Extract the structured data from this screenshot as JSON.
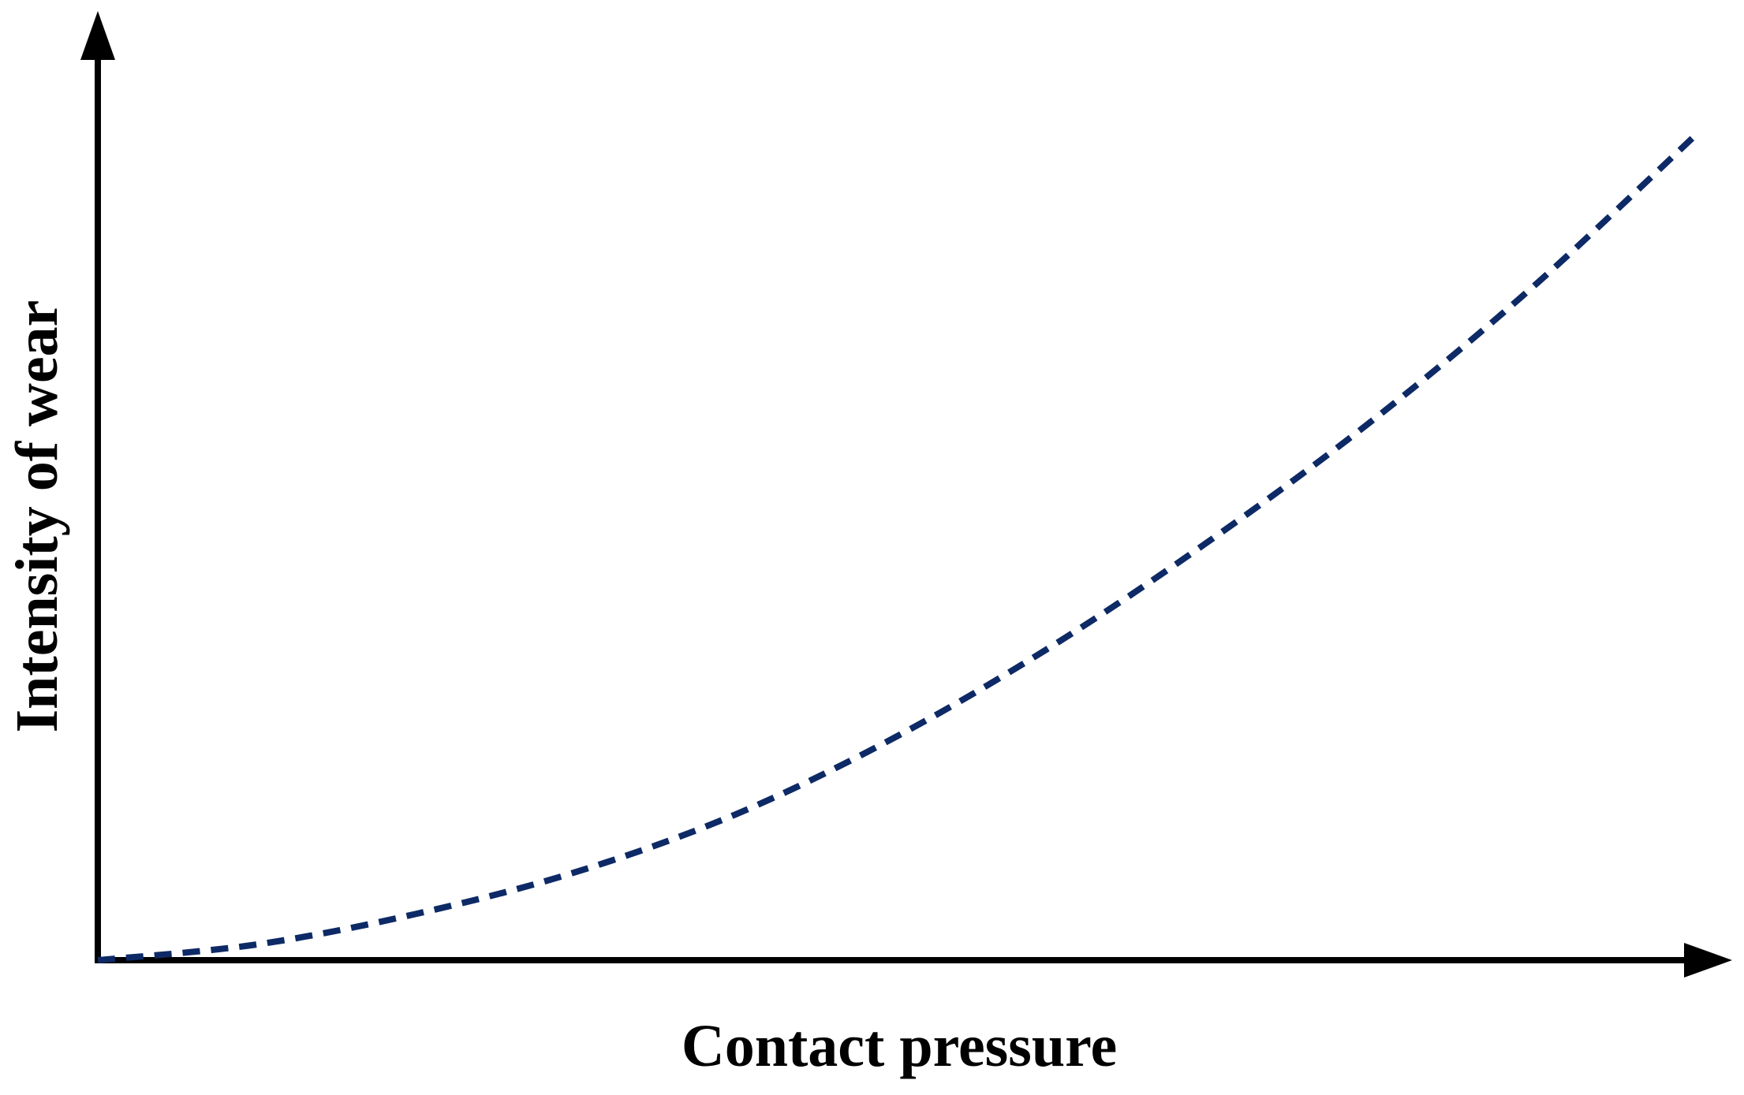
{
  "chart_data": {
    "type": "line",
    "title": "",
    "xlabel": "Contact pressure",
    "ylabel": "Intensity of wear",
    "xlim": [
      0,
      1
    ],
    "ylim": [
      0,
      1
    ],
    "grid": false,
    "ticks": false,
    "series": [
      {
        "color": "#0d2a66",
        "line_style": "dashed",
        "x": [
          0,
          0.1,
          0.2,
          0.3,
          0.4,
          0.5,
          0.6,
          0.7,
          0.8,
          0.9,
          1.0
        ],
        "y": [
          0,
          0.017,
          0.05,
          0.095,
          0.157,
          0.24,
          0.34,
          0.455,
          0.582,
          0.725,
          0.885
        ]
      }
    ]
  },
  "colors": {
    "axis": "#000000",
    "curve": "#0d2a66",
    "background": "#ffffff"
  }
}
